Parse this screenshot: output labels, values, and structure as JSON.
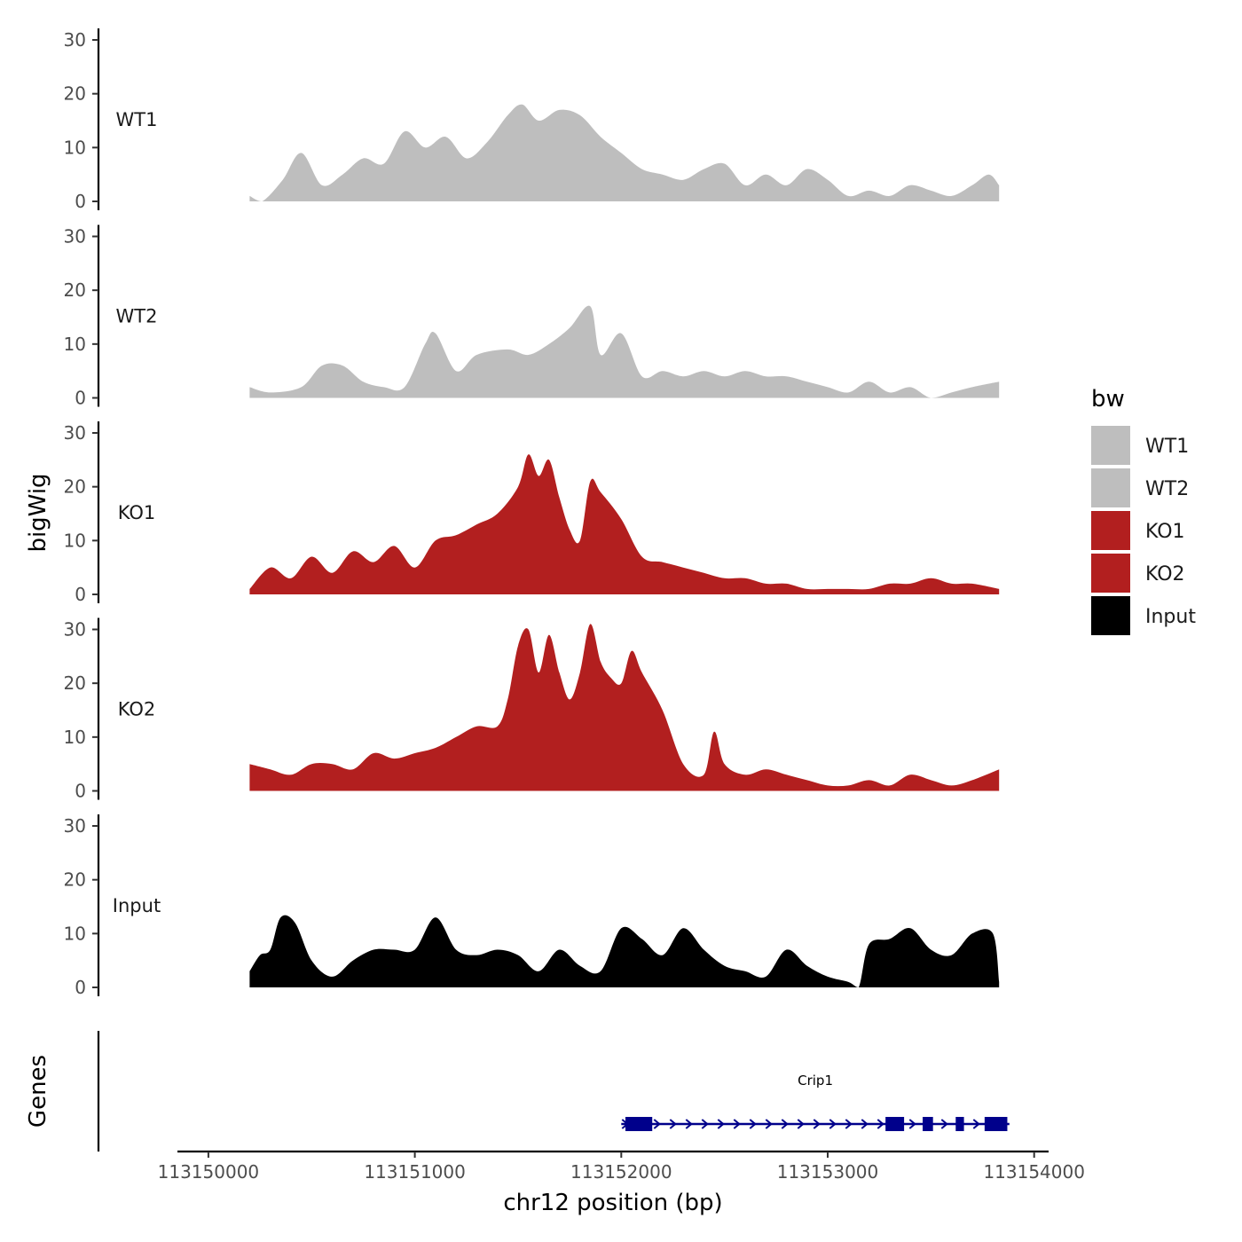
{
  "chart_data": {
    "type": "area",
    "title": "",
    "xlabel": "chr12 position (bp)",
    "ylabel": "bigWig",
    "genes_label": "Genes",
    "xlim": [
      113149850,
      113154070
    ],
    "ylim": [
      0,
      32
    ],
    "x_ticks": [
      113150000,
      113151000,
      113152000,
      113153000,
      113154000
    ],
    "x_tick_labels": [
      "113150000",
      "113151000",
      "113152000",
      "113153000",
      "113154000"
    ],
    "y_ticks": [
      0,
      10,
      20,
      30
    ],
    "y_tick_labels": [
      "0",
      "10",
      "20",
      "30"
    ],
    "legend": {
      "title": "bw",
      "position": "right",
      "entries": [
        {
          "label": "WT1",
          "color": "#bebebe"
        },
        {
          "label": "WT2",
          "color": "#bebebe"
        },
        {
          "label": "KO1",
          "color": "#b21f1f"
        },
        {
          "label": "KO2",
          "color": "#b21f1f"
        },
        {
          "label": "Input",
          "color": "#000000"
        }
      ]
    },
    "series": [
      {
        "name": "WT1",
        "color": "#bebebe",
        "x": [
          113150200,
          113150260,
          113150360,
          113150450,
          113150550,
          113150650,
          113150750,
          113150850,
          113150950,
          113151050,
          113151150,
          113151250,
          113151350,
          113151450,
          113151520,
          113151600,
          113151700,
          113151800,
          113151900,
          113152000,
          113152100,
          113152200,
          113152300,
          113152400,
          113152500,
          113152600,
          113152700,
          113152800,
          113152900,
          113153000,
          113153100,
          113153200,
          113153300,
          113153400,
          113153500,
          113153600,
          113153700,
          113153780,
          113153830
        ],
        "values": [
          1,
          0,
          4,
          9,
          3,
          5,
          8,
          7,
          13,
          10,
          12,
          8,
          11,
          16,
          18,
          15,
          17,
          16,
          12,
          9,
          6,
          5,
          4,
          6,
          7,
          3,
          5,
          3,
          6,
          4,
          1,
          2,
          1,
          3,
          2,
          1,
          3,
          5,
          3
        ]
      },
      {
        "name": "WT2",
        "color": "#bebebe",
        "x": [
          113150200,
          113150300,
          113150450,
          113150550,
          113150650,
          113150750,
          113150850,
          113150950,
          113151050,
          113151100,
          113151200,
          113151300,
          113151450,
          113151550,
          113151650,
          113151750,
          113151850,
          113151900,
          113152000,
          113152100,
          113152200,
          113152300,
          113152400,
          113152500,
          113152600,
          113152700,
          113152800,
          113152900,
          113153000,
          113153100,
          113153200,
          113153300,
          113153400,
          113153500,
          113153600,
          113153700,
          113153830
        ],
        "values": [
          2,
          1,
          2,
          6,
          6,
          3,
          2,
          2,
          10,
          12,
          5,
          8,
          9,
          8,
          10,
          13,
          17,
          8,
          12,
          4,
          5,
          4,
          5,
          4,
          5,
          4,
          4,
          3,
          2,
          1,
          3,
          1,
          2,
          0,
          1,
          2,
          3
        ]
      },
      {
        "name": "KO1",
        "color": "#b21f1f",
        "x": [
          113150200,
          113150300,
          113150400,
          113150500,
          113150600,
          113150700,
          113150800,
          113150900,
          113151000,
          113151100,
          113151200,
          113151300,
          113151400,
          113151500,
          113151550,
          113151600,
          113151650,
          113151700,
          113151750,
          113151800,
          113151850,
          113151900,
          113152000,
          113152100,
          113152200,
          113152300,
          113152400,
          113152500,
          113152600,
          113152700,
          113152800,
          113152900,
          113153000,
          113153100,
          113153200,
          113153300,
          113153400,
          113153500,
          113153600,
          113153700,
          113153830
        ],
        "values": [
          1,
          5,
          3,
          7,
          4,
          8,
          6,
          9,
          5,
          10,
          11,
          13,
          15,
          20,
          26,
          22,
          25,
          18,
          12,
          10,
          21,
          19,
          14,
          7,
          6,
          5,
          4,
          3,
          3,
          2,
          2,
          1,
          1,
          1,
          1,
          2,
          2,
          3,
          2,
          2,
          1
        ]
      },
      {
        "name": "KO2",
        "color": "#b21f1f",
        "x": [
          113150200,
          113150300,
          113150400,
          113150500,
          113150600,
          113150700,
          113150800,
          113150900,
          113151000,
          113151100,
          113151200,
          113151300,
          113151400,
          113151450,
          113151500,
          113151550,
          113151600,
          113151650,
          113151700,
          113151750,
          113151800,
          113151850,
          113151900,
          113151950,
          113152000,
          113152050,
          113152100,
          113152200,
          113152300,
          113152400,
          113152450,
          113152500,
          113152600,
          113152700,
          113152800,
          113152900,
          113153000,
          113153100,
          113153200,
          113153300,
          113153400,
          113153500,
          113153600,
          113153700,
          113153830
        ],
        "values": [
          5,
          4,
          3,
          5,
          5,
          4,
          7,
          6,
          7,
          8,
          10,
          12,
          12,
          17,
          27,
          30,
          22,
          29,
          22,
          17,
          22,
          31,
          24,
          21,
          20,
          26,
          22,
          15,
          5,
          3,
          11,
          5,
          3,
          4,
          3,
          2,
          1,
          1,
          2,
          1,
          3,
          2,
          1,
          2,
          4
        ]
      },
      {
        "name": "Input",
        "color": "#000000",
        "x": [
          113150200,
          113150250,
          113150300,
          113150350,
          113150420,
          113150500,
          113150600,
          113150700,
          113150800,
          113150900,
          113151000,
          113151100,
          113151200,
          113151300,
          113151400,
          113151500,
          113151600,
          113151700,
          113151800,
          113151900,
          113152000,
          113152100,
          113152200,
          113152300,
          113152400,
          113152500,
          113152600,
          113152700,
          113152800,
          113152900,
          113153000,
          113153100,
          113153150,
          113153200,
          113153300,
          113153400,
          113153500,
          113153600,
          113153700,
          113153800,
          113153830
        ],
        "values": [
          3,
          6,
          7,
          13,
          12,
          5,
          2,
          5,
          7,
          7,
          7,
          13,
          7,
          6,
          7,
          6,
          3,
          7,
          4,
          3,
          11,
          9,
          6,
          11,
          7,
          4,
          3,
          2,
          7,
          4,
          2,
          1,
          0,
          8,
          9,
          11,
          7,
          6,
          10,
          10,
          1
        ]
      }
    ],
    "genes": [
      {
        "name": "Crip1",
        "color": "#00008b",
        "strand": "+",
        "start": 113152000,
        "end": 113153880,
        "exons": [
          [
            113152020,
            113152150
          ],
          [
            113153280,
            113153370
          ],
          [
            113153460,
            113153510
          ],
          [
            113153620,
            113153660
          ],
          [
            113153760,
            113153870
          ]
        ]
      }
    ]
  }
}
